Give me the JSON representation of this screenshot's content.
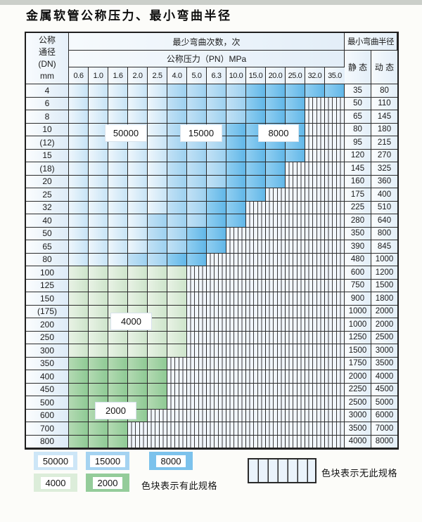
{
  "title": "金属软管公称压力、最小弯曲半径",
  "table": {
    "dn_header_lines": [
      "公称",
      "通径",
      "(DN)",
      "mm"
    ],
    "cycles_header": "最少弯曲次数，次",
    "pressure_header": "公称压力（PN）MPa",
    "pressure_columns": [
      "0.6",
      "1.0",
      "1.6",
      "2.0",
      "2.5",
      "4.0",
      "5.0",
      "6.3",
      "10.0",
      "15.0",
      "20.0",
      "25.0",
      "32.0",
      "35.0"
    ],
    "radius_header": "最小弯曲半径",
    "static_label": "静 态",
    "dynamic_label": "动 态",
    "zone_codes": {
      "a": "50000次(浅蓝)",
      "b": "15000次(中蓝)",
      "c": "8000次(深蓝)",
      "d": "4000次(浅绿)",
      "e": "2000次(深绿)",
      "x": "无此规格(竖线阴影)"
    },
    "rows": [
      {
        "dn": "4",
        "cells": "aaaaabbbbccccc",
        "static": "35",
        "dynamic": "80"
      },
      {
        "dn": "6",
        "cells": "aaaaabbbbcccxx",
        "static": "50",
        "dynamic": "110"
      },
      {
        "dn": "8",
        "cells": "aaaaabbbbcccxx",
        "static": "65",
        "dynamic": "145"
      },
      {
        "dn": "10",
        "cells": "aaaaabbbccccxx",
        "static": "80",
        "dynamic": "180"
      },
      {
        "dn": "(12)",
        "cells": "aaaaabbbccccxx",
        "static": "95",
        "dynamic": "215"
      },
      {
        "dn": "15",
        "cells": "aaaaabbbccccxx",
        "static": "120",
        "dynamic": "270"
      },
      {
        "dn": "(18)",
        "cells": "aaaaabbbcccxxx",
        "static": "145",
        "dynamic": "325"
      },
      {
        "dn": "20",
        "cells": "aaaaabbbcccxxx",
        "static": "160",
        "dynamic": "360"
      },
      {
        "dn": "25",
        "cells": "aaaaabbcccxxxx",
        "static": "175",
        "dynamic": "400"
      },
      {
        "dn": "32",
        "cells": "aaaaabbccxxxxx",
        "static": "225",
        "dynamic": "510"
      },
      {
        "dn": "40",
        "cells": "aaaabbbccxxxxx",
        "static": "280",
        "dynamic": "640"
      },
      {
        "dn": "50",
        "cells": "aaaabbccxxxxxx",
        "static": "350",
        "dynamic": "800"
      },
      {
        "dn": "65",
        "cells": "aaaabbccxxxxxx",
        "static": "390",
        "dynamic": "845"
      },
      {
        "dn": "80",
        "cells": "aaabbccxxxxxxx",
        "static": "480",
        "dynamic": "1000"
      },
      {
        "dn": "100",
        "cells": "ddddddxxxxxxxx",
        "static": "600",
        "dynamic": "1200"
      },
      {
        "dn": "125",
        "cells": "ddddddxxxxxxxx",
        "static": "750",
        "dynamic": "1500"
      },
      {
        "dn": "150",
        "cells": "ddddddxxxxxxxx",
        "static": "900",
        "dynamic": "1800"
      },
      {
        "dn": "(175)",
        "cells": "ddddddxxxxxxxx",
        "static": "1000",
        "dynamic": "2000"
      },
      {
        "dn": "200",
        "cells": "ddddddxxxxxxxx",
        "static": "1000",
        "dynamic": "2000"
      },
      {
        "dn": "250",
        "cells": "ddddddxxxxxxxx",
        "static": "1250",
        "dynamic": "2500"
      },
      {
        "dn": "300",
        "cells": "ddddddxxxxxxxx",
        "static": "1500",
        "dynamic": "3000"
      },
      {
        "dn": "350",
        "cells": "eeeeexxxxxxxxx",
        "static": "1750",
        "dynamic": "3500"
      },
      {
        "dn": "400",
        "cells": "eeeeexxxxxxxxx",
        "static": "2000",
        "dynamic": "4000"
      },
      {
        "dn": "450",
        "cells": "eeeeexxxxxxxxx",
        "static": "2250",
        "dynamic": "4500"
      },
      {
        "dn": "500",
        "cells": "eeeeexxxxxxxxx",
        "static": "2500",
        "dynamic": "5000"
      },
      {
        "dn": "600",
        "cells": "eeeexxxxxxxxxx",
        "static": "3000",
        "dynamic": "6000"
      },
      {
        "dn": "700",
        "cells": "eeexxxxxxxxxxx",
        "static": "3500",
        "dynamic": "7000"
      },
      {
        "dn": "800",
        "cells": "eeexxxxxxxxxxx",
        "static": "4000",
        "dynamic": "8000"
      }
    ]
  },
  "overlay_labels": {
    "b50000": "50000",
    "b15000": "15000",
    "b8000": "8000",
    "b4000": "4000",
    "b2000": "2000"
  },
  "legend": {
    "swatches": [
      {
        "label": "50000",
        "color": "#cde6f7"
      },
      {
        "label": "15000",
        "color": "#a5d3f1"
      },
      {
        "label": "8000",
        "color": "#7cc2ec"
      },
      {
        "label": "4000",
        "color": "#dcedda"
      },
      {
        "label": "2000",
        "color": "#94cc9a"
      }
    ],
    "present_text": "色块表示有此规格",
    "absent_text": "色块表示无此规格"
  }
}
